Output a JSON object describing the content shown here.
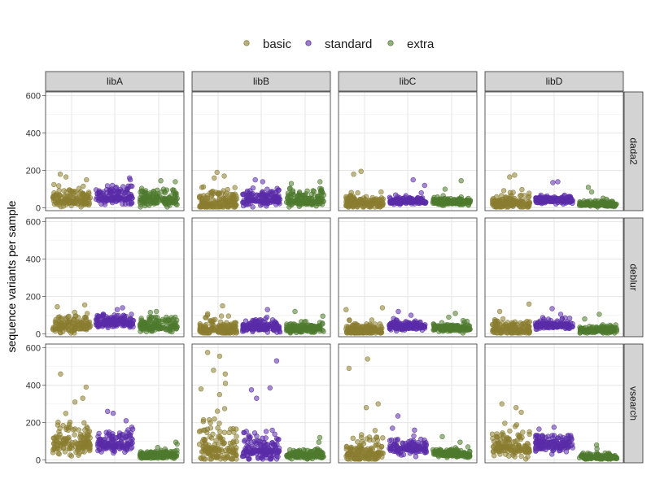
{
  "chart_data": {
    "type": "scatter",
    "subtype": "faceted-jitter",
    "title": "",
    "xlabel": "",
    "ylabel": "sequence variants per sample",
    "ylim": [
      -15,
      620
    ],
    "yticks": [
      0,
      200,
      400,
      600
    ],
    "grid": true,
    "legend": {
      "placement": "top",
      "entries": [
        {
          "name": "basic",
          "color": "#8B7D30"
        },
        {
          "name": "standard",
          "color": "#5A2CA8"
        },
        {
          "name": "extra",
          "color": "#4E7A2E"
        }
      ]
    },
    "series": [
      {
        "name": "basic",
        "color": "#8B7D30"
      },
      {
        "name": "standard",
        "color": "#5A2CA8"
      },
      {
        "name": "extra",
        "color": "#4E7A2E"
      }
    ],
    "facet_cols": [
      "libA",
      "libB",
      "libC",
      "libD"
    ],
    "facet_rows": [
      "dada2",
      "deblur",
      "vsearch"
    ],
    "panels": [
      {
        "row": "dada2",
        "col": "libA",
        "groups": [
          {
            "series": "basic",
            "median": 40,
            "spread": 32,
            "max": 180,
            "outliers": [
              180,
              165,
              150
            ]
          },
          {
            "series": "standard",
            "median": 55,
            "spread": 30,
            "max": 160,
            "outliers": [
              160,
              150
            ]
          },
          {
            "series": "extra",
            "median": 45,
            "spread": 28,
            "max": 150,
            "outliers": [
              145,
              140
            ]
          }
        ]
      },
      {
        "row": "dada2",
        "col": "libB",
        "groups": [
          {
            "series": "basic",
            "median": 25,
            "spread": 35,
            "max": 190,
            "outliers": [
              190,
              170,
              160
            ]
          },
          {
            "series": "standard",
            "median": 45,
            "spread": 30,
            "max": 150,
            "outliers": [
              150,
              140
            ]
          },
          {
            "series": "extra",
            "median": 40,
            "spread": 28,
            "max": 140,
            "outliers": [
              140,
              130
            ]
          }
        ]
      },
      {
        "row": "dada2",
        "col": "libC",
        "groups": [
          {
            "series": "basic",
            "median": 25,
            "spread": 25,
            "max": 195,
            "outliers": [
              195,
              180
            ]
          },
          {
            "series": "standard",
            "median": 35,
            "spread": 12,
            "max": 150,
            "outliers": [
              150,
              120
            ]
          },
          {
            "series": "extra",
            "median": 30,
            "spread": 12,
            "max": 145,
            "outliers": [
              145,
              100
            ]
          }
        ]
      },
      {
        "row": "dada2",
        "col": "libD",
        "groups": [
          {
            "series": "basic",
            "median": 25,
            "spread": 25,
            "max": 175,
            "outliers": [
              175,
              165
            ]
          },
          {
            "series": "standard",
            "median": 40,
            "spread": 12,
            "max": 140,
            "outliers": [
              140,
              135
            ]
          },
          {
            "series": "extra",
            "median": 20,
            "spread": 10,
            "max": 110,
            "outliers": [
              110,
              85
            ]
          }
        ]
      },
      {
        "row": "deblur",
        "col": "libA",
        "groups": [
          {
            "series": "basic",
            "median": 45,
            "spread": 30,
            "max": 155,
            "outliers": [
              155,
              145
            ]
          },
          {
            "series": "standard",
            "median": 60,
            "spread": 25,
            "max": 140,
            "outliers": [
              140,
              130
            ]
          },
          {
            "series": "extra",
            "median": 40,
            "spread": 25,
            "max": 120,
            "outliers": [
              120,
              115
            ]
          }
        ]
      },
      {
        "row": "deblur",
        "col": "libB",
        "groups": [
          {
            "series": "basic",
            "median": 25,
            "spread": 25,
            "max": 150,
            "outliers": [
              150,
              100
            ]
          },
          {
            "series": "standard",
            "median": 35,
            "spread": 20,
            "max": 130,
            "outliers": [
              130,
              90
            ]
          },
          {
            "series": "extra",
            "median": 30,
            "spread": 20,
            "max": 120,
            "outliers": [
              120,
              95
            ]
          }
        ]
      },
      {
        "row": "deblur",
        "col": "libC",
        "groups": [
          {
            "series": "basic",
            "median": 20,
            "spread": 22,
            "max": 140,
            "outliers": [
              140,
              130
            ]
          },
          {
            "series": "standard",
            "median": 40,
            "spread": 15,
            "max": 120,
            "outliers": [
              120,
              100
            ]
          },
          {
            "series": "extra",
            "median": 30,
            "spread": 15,
            "max": 110,
            "outliers": [
              110,
              90
            ]
          }
        ]
      },
      {
        "row": "deblur",
        "col": "libD",
        "groups": [
          {
            "series": "basic",
            "median": 25,
            "spread": 22,
            "max": 160,
            "outliers": [
              160,
              120
            ]
          },
          {
            "series": "standard",
            "median": 45,
            "spread": 15,
            "max": 135,
            "outliers": [
              135,
              105
            ]
          },
          {
            "series": "extra",
            "median": 20,
            "spread": 12,
            "max": 105,
            "outliers": [
              105,
              80
            ]
          }
        ]
      },
      {
        "row": "vsearch",
        "col": "libA",
        "groups": [
          {
            "series": "basic",
            "median": 95,
            "spread": 55,
            "max": 460,
            "outliers": [
              460,
              390,
              330,
              310
            ]
          },
          {
            "series": "standard",
            "median": 85,
            "spread": 35,
            "max": 260,
            "outliers": [
              260,
              250,
              210
            ]
          },
          {
            "series": "extra",
            "median": 25,
            "spread": 15,
            "max": 95,
            "outliers": [
              95,
              85
            ]
          }
        ]
      },
      {
        "row": "vsearch",
        "col": "libB",
        "groups": [
          {
            "series": "basic",
            "median": 60,
            "spread": 80,
            "max": 575,
            "outliers": [
              575,
              555,
              480,
              460,
              410,
              380,
              350
            ]
          },
          {
            "series": "standard",
            "median": 55,
            "spread": 45,
            "max": 530,
            "outliers": [
              530,
              385,
              375,
              330
            ]
          },
          {
            "series": "extra",
            "median": 25,
            "spread": 15,
            "max": 120,
            "outliers": [
              120,
              95
            ]
          }
        ]
      },
      {
        "row": "vsearch",
        "col": "libC",
        "groups": [
          {
            "series": "basic",
            "median": 40,
            "spread": 45,
            "max": 540,
            "outliers": [
              540,
              490,
              300,
              280
            ]
          },
          {
            "series": "standard",
            "median": 65,
            "spread": 25,
            "max": 235,
            "outliers": [
              235,
              170,
              160
            ]
          },
          {
            "series": "extra",
            "median": 30,
            "spread": 15,
            "max": 125,
            "outliers": [
              125,
              95
            ]
          }
        ]
      },
      {
        "row": "vsearch",
        "col": "libD",
        "groups": [
          {
            "series": "basic",
            "median": 70,
            "spread": 45,
            "max": 300,
            "outliers": [
              300,
              280,
              255
            ]
          },
          {
            "series": "standard",
            "median": 80,
            "spread": 30,
            "max": 175,
            "outliers": [
              175,
              165
            ]
          },
          {
            "series": "extra",
            "median": 15,
            "spread": 10,
            "max": 80,
            "outliers": [
              80,
              60
            ]
          }
        ]
      }
    ]
  }
}
